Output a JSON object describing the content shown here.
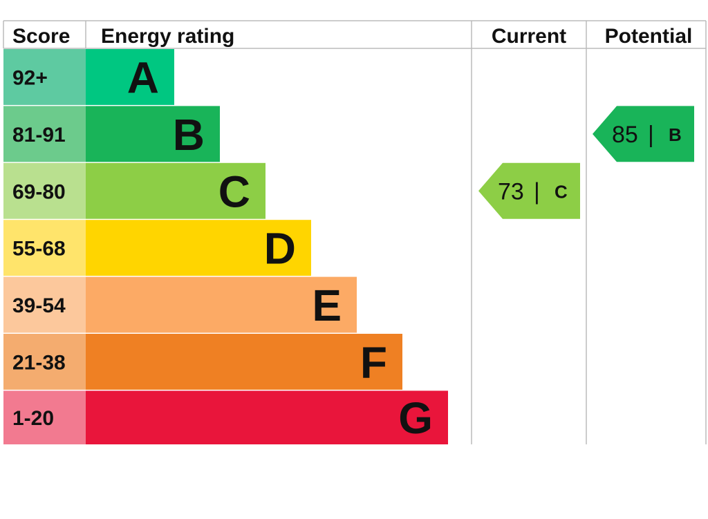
{
  "chart_data": {
    "type": "bar",
    "headers": {
      "score": "Score",
      "energy_rating": "Energy rating",
      "current": "Current",
      "potential": "Potential"
    },
    "bands": [
      {
        "score": "92+",
        "letter": "A",
        "color": "#00c781",
        "score_bg": "#5ecaa1"
      },
      {
        "score": "81-91",
        "letter": "B",
        "color": "#19b459",
        "score_bg": "#6ccb8c"
      },
      {
        "score": "69-80",
        "letter": "C",
        "color": "#8dce46",
        "score_bg": "#b9e08f"
      },
      {
        "score": "55-68",
        "letter": "D",
        "color": "#ffd500",
        "score_bg": "#ffe46b"
      },
      {
        "score": "39-54",
        "letter": "E",
        "color": "#fcaa65",
        "score_bg": "#fcc89c"
      },
      {
        "score": "21-38",
        "letter": "F",
        "color": "#ef8023",
        "score_bg": "#f4ac6f"
      },
      {
        "score": "1-20",
        "letter": "G",
        "color": "#e9153b",
        "score_bg": "#f27a90"
      }
    ],
    "current": {
      "value": 73,
      "letter": "C",
      "separator": "|",
      "color": "#8dce46"
    },
    "potential": {
      "value": 85,
      "letter": "B",
      "separator": "|",
      "color": "#19b459"
    }
  }
}
